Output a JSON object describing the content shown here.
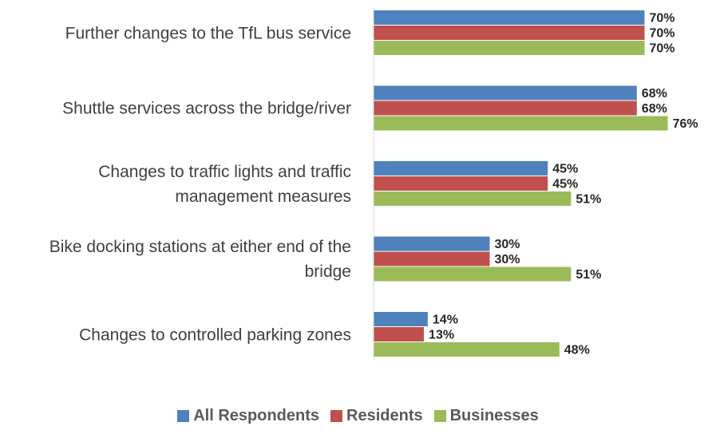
{
  "chart_data": {
    "type": "bar",
    "orientation": "horizontal",
    "categories": [
      "Further changes to the TfL bus service",
      "Shuttle services across the bridge/river",
      "Changes to traffic lights and traffic management measures",
      "Bike docking stations at either end of the bridge",
      "Changes to controlled parking zones"
    ],
    "series": [
      {
        "name": "All Respondents",
        "color": "#4f81bd",
        "values": [
          70,
          68,
          45,
          30,
          14
        ],
        "value_labels": [
          "70%",
          "68%",
          "45%",
          "30%",
          "14%"
        ]
      },
      {
        "name": "Residents",
        "color": "#c0504d",
        "values": [
          70,
          68,
          45,
          30,
          13
        ],
        "value_labels": [
          "70%",
          "68%",
          "45%",
          "30%",
          "13%"
        ]
      },
      {
        "name": "Businesses",
        "color": "#9bbb59",
        "values": [
          70,
          76,
          51,
          51,
          48
        ],
        "value_labels": [
          "70%",
          "76%",
          "51%",
          "51%",
          "48%"
        ]
      }
    ],
    "xlim": [
      0,
      80
    ],
    "legend": "bottom"
  }
}
